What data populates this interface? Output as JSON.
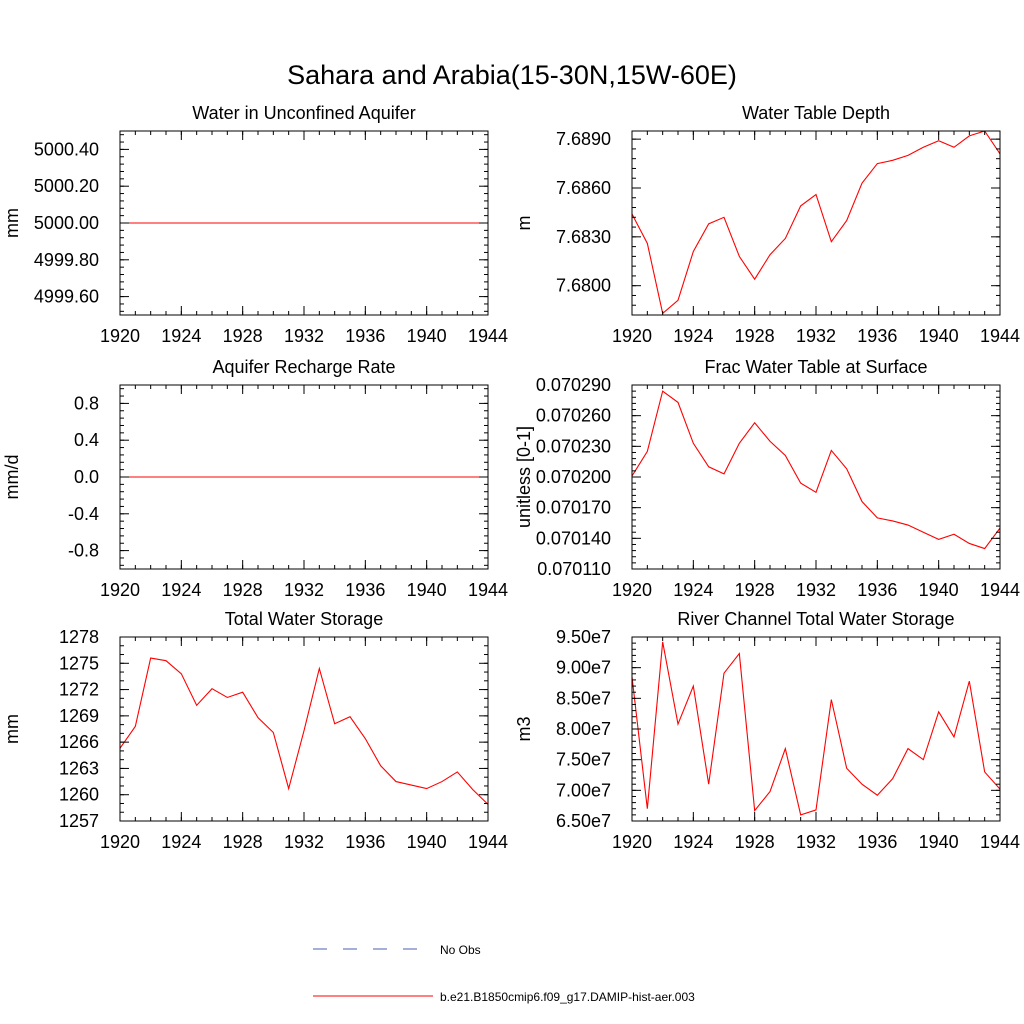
{
  "title": "Sahara and Arabia(15-30N,15W-60E)",
  "legend": {
    "obs_label": "No Obs",
    "obs_color": "#4b5fb0",
    "model_label": "b.e21.B1850cmip6.f09_g17.DAMIP-hist-aer.003",
    "model_color": "#ff0000"
  },
  "chart_data": [
    {
      "type": "line",
      "title": "Water in Unconfined Aquifer",
      "ylabel": "mm",
      "xlim": [
        1920,
        1944
      ],
      "xticks": [
        1920,
        1924,
        1928,
        1932,
        1936,
        1940,
        1944
      ],
      "ylim": [
        4999.5,
        5000.5
      ],
      "yticks": [
        "5000.40",
        "5000.20",
        "5000.00",
        "4999.80",
        "4999.60"
      ],
      "ytick_values": [
        5000.4,
        5000.2,
        5000.0,
        4999.8,
        4999.6
      ],
      "ytick_minor": 0.04,
      "x": [
        1920,
        1921,
        1922,
        1923,
        1924,
        1925,
        1926,
        1927,
        1928,
        1929,
        1930,
        1931,
        1932,
        1933,
        1934,
        1935,
        1936,
        1937,
        1938,
        1939,
        1940,
        1941,
        1942,
        1943,
        1944
      ],
      "series": [
        {
          "values": [
            5000,
            5000,
            5000,
            5000,
            5000,
            5000,
            5000,
            5000,
            5000,
            5000,
            5000,
            5000,
            5000,
            5000,
            5000,
            5000,
            5000,
            5000,
            5000,
            5000,
            5000,
            5000,
            5000,
            5000,
            5000
          ]
        }
      ]
    },
    {
      "type": "line",
      "title": "Water Table Depth",
      "ylabel": "m",
      "xlim": [
        1920,
        1944
      ],
      "xticks": [
        1920,
        1924,
        1928,
        1932,
        1936,
        1940,
        1944
      ],
      "ylim": [
        7.6782,
        7.6895
      ],
      "yticks": [
        "7.6890",
        "7.6860",
        "7.6830",
        "7.6800"
      ],
      "ytick_values": [
        7.689,
        7.686,
        7.683,
        7.68
      ],
      "ytick_minor": 0.0006,
      "x": [
        1920,
        1921,
        1922,
        1923,
        1924,
        1925,
        1926,
        1927,
        1928,
        1929,
        1930,
        1931,
        1932,
        1933,
        1934,
        1935,
        1936,
        1937,
        1938,
        1939,
        1940,
        1941,
        1942,
        1943,
        1944
      ],
      "series": [
        {
          "values": [
            7.6844,
            7.6826,
            7.6783,
            7.6791,
            7.6821,
            7.6838,
            7.6842,
            7.6818,
            7.6804,
            7.6819,
            7.6829,
            7.6849,
            7.6856,
            7.6827,
            7.684,
            7.6863,
            7.6875,
            7.6877,
            7.688,
            7.6885,
            7.6889,
            7.6885,
            7.6892,
            7.6895,
            7.6881
          ]
        }
      ]
    },
    {
      "type": "line",
      "title": "Aquifer Recharge Rate",
      "ylabel": "mm/d",
      "xlim": [
        1920,
        1944
      ],
      "xticks": [
        1920,
        1924,
        1928,
        1932,
        1936,
        1940,
        1944
      ],
      "ylim": [
        -1.0,
        1.0
      ],
      "yticks": [
        "0.8",
        "0.4",
        "0.0",
        "-0.4",
        "-0.8"
      ],
      "ytick_values": [
        0.8,
        0.4,
        0.0,
        -0.4,
        -0.8
      ],
      "ytick_minor": 0.08,
      "x": [
        1920,
        1921,
        1922,
        1923,
        1924,
        1925,
        1926,
        1927,
        1928,
        1929,
        1930,
        1931,
        1932,
        1933,
        1934,
        1935,
        1936,
        1937,
        1938,
        1939,
        1940,
        1941,
        1942,
        1943,
        1944
      ],
      "series": [
        {
          "values": [
            0,
            0,
            0,
            0,
            0,
            0,
            0,
            0,
            0,
            0,
            0,
            0,
            0,
            0,
            0,
            0,
            0,
            0,
            0,
            0,
            0,
            0,
            0,
            0,
            0
          ]
        }
      ]
    },
    {
      "type": "line",
      "title": "Frac Water Table at Surface",
      "ylabel": "unitless [0-1]",
      "xlim": [
        1920,
        1944
      ],
      "xticks": [
        1920,
        1924,
        1928,
        1932,
        1936,
        1940,
        1944
      ],
      "ylim": [
        0.07011,
        0.07029
      ],
      "yticks": [
        "0.070290",
        "0.070260",
        "0.070230",
        "0.070200",
        "0.070170",
        "0.070140",
        "0.070110"
      ],
      "ytick_values": [
        0.07029,
        0.07026,
        0.07023,
        0.0702,
        0.07017,
        0.07014,
        0.07011
      ],
      "ytick_minor": 6e-06,
      "x": [
        1920,
        1921,
        1922,
        1923,
        1924,
        1925,
        1926,
        1927,
        1928,
        1929,
        1930,
        1931,
        1932,
        1933,
        1934,
        1935,
        1936,
        1937,
        1938,
        1939,
        1940,
        1941,
        1942,
        1943,
        1944
      ],
      "series": [
        {
          "values": [
            0.070201,
            0.070225,
            0.070284,
            0.070273,
            0.070233,
            0.07021,
            0.070203,
            0.070233,
            0.070253,
            0.070235,
            0.070221,
            0.070194,
            0.070185,
            0.070226,
            0.070208,
            0.070176,
            0.07016,
            0.070157,
            0.070153,
            0.070146,
            0.070139,
            0.070144,
            0.070135,
            0.07013,
            0.07015
          ]
        }
      ]
    },
    {
      "type": "line",
      "title": "Total Water Storage",
      "ylabel": "mm",
      "xlim": [
        1920,
        1944
      ],
      "xticks": [
        1920,
        1924,
        1928,
        1932,
        1936,
        1940,
        1944
      ],
      "ylim": [
        1257,
        1278
      ],
      "yticks": [
        "1278",
        "1275",
        "1272",
        "1269",
        "1266",
        "1263",
        "1260",
        "1257"
      ],
      "ytick_values": [
        1278,
        1275,
        1272,
        1269,
        1266,
        1263,
        1260,
        1257
      ],
      "ytick_minor": 1,
      "x": [
        1920,
        1921,
        1922,
        1923,
        1924,
        1925,
        1926,
        1927,
        1928,
        1929,
        1930,
        1931,
        1932,
        1933,
        1934,
        1935,
        1936,
        1937,
        1938,
        1939,
        1940,
        1941,
        1942,
        1943,
        1944
      ],
      "series": [
        {
          "values": [
            1265.3,
            1267.8,
            1275.6,
            1275.3,
            1273.8,
            1270.2,
            1272.1,
            1271.1,
            1271.7,
            1268.8,
            1267.1,
            1260.7,
            1267.3,
            1274.4,
            1268.1,
            1268.9,
            1266.4,
            1263.3,
            1261.5,
            1261.1,
            1260.7,
            1261.5,
            1262.6,
            1260.6,
            1258.9
          ]
        }
      ]
    },
    {
      "type": "line",
      "title": "River Channel Total Water Storage",
      "ylabel": "m3",
      "xlim": [
        1920,
        1944
      ],
      "xticks": [
        1920,
        1924,
        1928,
        1932,
        1936,
        1940,
        1944
      ],
      "ylim": [
        65000000,
        95000000
      ],
      "yticks": [
        "9.50e7",
        "9.00e7",
        "8.50e7",
        "8.00e7",
        "7.50e7",
        "7.00e7",
        "6.50e7"
      ],
      "ytick_values": [
        95000000,
        90000000,
        85000000,
        80000000,
        75000000,
        70000000,
        65000000
      ],
      "ytick_minor": 1000000,
      "x": [
        1920,
        1921,
        1922,
        1923,
        1924,
        1925,
        1926,
        1927,
        1928,
        1929,
        1930,
        1931,
        1932,
        1933,
        1934,
        1935,
        1936,
        1937,
        1938,
        1939,
        1940,
        1941,
        1942,
        1943,
        1944
      ],
      "series": [
        {
          "values": [
            88500000,
            67000000,
            94200000,
            80800000,
            87000000,
            71000000,
            89100000,
            92300000,
            66700000,
            69800000,
            76800000,
            66000000,
            66800000,
            84800000,
            73600000,
            71000000,
            69200000,
            71900000,
            76800000,
            75000000,
            82800000,
            78700000,
            87800000,
            73000000,
            70200000
          ]
        }
      ]
    }
  ]
}
